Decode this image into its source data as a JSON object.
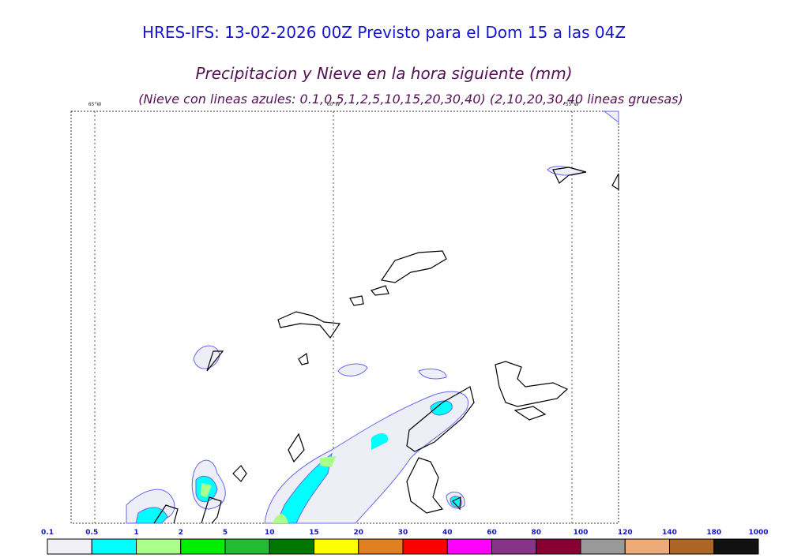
{
  "header": {
    "title": "HRES-IFS: 13-02-2026 00Z Previsto para el Dom 15 a las 04Z",
    "subtitle": "Precipitacion y Nieve en la hora siguiente (mm)",
    "note": "(Nieve con lineas azules: 0.1,0.5,1,2,5,10,15,20,30,40)  (2,10,20,30,40 lineas gruesas)"
  },
  "map": {
    "meridians": [
      "65°W",
      "60°W",
      "55°W"
    ]
  },
  "legend": {
    "labels": [
      "0.1",
      "0.5",
      "1",
      "2",
      "5",
      "10",
      "15",
      "20",
      "30",
      "40",
      "60",
      "80",
      "100",
      "120",
      "140",
      "180",
      "1000"
    ],
    "colors": [
      "#f0f0f6",
      "#00ffff",
      "#aaff88",
      "#00ee00",
      "#22bb33",
      "#007700",
      "#ffff00",
      "#e08020",
      "#ff0000",
      "#ff00ff",
      "#883388",
      "#880033",
      "#999999",
      "#eeaa77",
      "#aa6622",
      "#111111"
    ]
  }
}
